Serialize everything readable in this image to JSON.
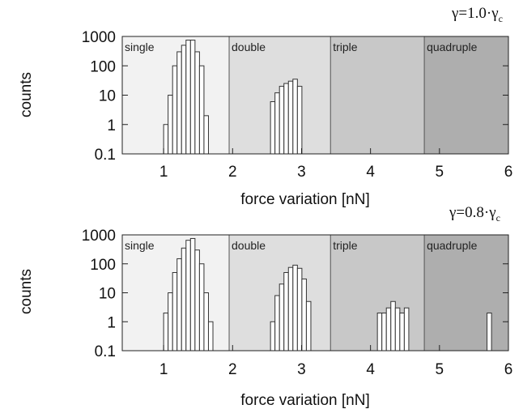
{
  "chart_data": [
    {
      "type": "bar",
      "annotation": "γ=1.0·γ",
      "annotation_sub": "c",
      "xlabel": "force variation [nN]",
      "ylabel": "counts",
      "xlim": [
        0.4,
        6
      ],
      "ylim": [
        0.1,
        1000
      ],
      "yscale": "log",
      "xticks": [
        1,
        2,
        3,
        4,
        5,
        6
      ],
      "yticks": [
        0.1,
        1,
        10,
        100,
        1000
      ],
      "ytick_labels": [
        "0.1",
        "1",
        "10",
        "100",
        "1000"
      ],
      "regions": [
        {
          "label": "single",
          "from": 0.4,
          "to": 1.95,
          "color": "#f2f2f2"
        },
        {
          "label": "double",
          "from": 1.95,
          "to": 3.42,
          "color": "#dedede"
        },
        {
          "label": "triple",
          "from": 3.42,
          "to": 4.78,
          "color": "#c8c8c8"
        },
        {
          "label": "quadruple",
          "from": 4.78,
          "to": 6,
          "color": "#aeaeae"
        }
      ],
      "bar_width": 0.065,
      "bins": [
        {
          "x": 1.0,
          "count": 1
        },
        {
          "x": 1.065,
          "count": 10
        },
        {
          "x": 1.13,
          "count": 100
        },
        {
          "x": 1.195,
          "count": 300
        },
        {
          "x": 1.26,
          "count": 500
        },
        {
          "x": 1.325,
          "count": 750
        },
        {
          "x": 1.39,
          "count": 750
        },
        {
          "x": 1.455,
          "count": 300
        },
        {
          "x": 1.52,
          "count": 100
        },
        {
          "x": 1.585,
          "count": 2
        },
        {
          "x": 2.55,
          "count": 6
        },
        {
          "x": 2.615,
          "count": 12
        },
        {
          "x": 2.68,
          "count": 20
        },
        {
          "x": 2.745,
          "count": 25
        },
        {
          "x": 2.81,
          "count": 30
        },
        {
          "x": 2.875,
          "count": 35
        },
        {
          "x": 2.94,
          "count": 20
        }
      ]
    },
    {
      "type": "bar",
      "annotation": "γ=0.8·γ",
      "annotation_sub": "c",
      "xlabel": "force variation [nN]",
      "ylabel": "counts",
      "xlim": [
        0.4,
        6
      ],
      "ylim": [
        0.1,
        1000
      ],
      "yscale": "log",
      "xticks": [
        1,
        2,
        3,
        4,
        5,
        6
      ],
      "yticks": [
        0.1,
        1,
        10,
        100,
        1000
      ],
      "ytick_labels": [
        "0.1",
        "1",
        "10",
        "100",
        "1000"
      ],
      "regions": [
        {
          "label": "single",
          "from": 0.4,
          "to": 1.95,
          "color": "#f2f2f2"
        },
        {
          "label": "double",
          "from": 1.95,
          "to": 3.42,
          "color": "#dedede"
        },
        {
          "label": "triple",
          "from": 3.42,
          "to": 4.78,
          "color": "#c8c8c8"
        },
        {
          "label": "quadruple",
          "from": 4.78,
          "to": 6,
          "color": "#aeaeae"
        }
      ],
      "bar_width": 0.065,
      "bins": [
        {
          "x": 1.0,
          "count": 2
        },
        {
          "x": 1.065,
          "count": 10
        },
        {
          "x": 1.13,
          "count": 50
        },
        {
          "x": 1.195,
          "count": 150
        },
        {
          "x": 1.26,
          "count": 350
        },
        {
          "x": 1.325,
          "count": 650
        },
        {
          "x": 1.39,
          "count": 750
        },
        {
          "x": 1.455,
          "count": 300
        },
        {
          "x": 1.52,
          "count": 100
        },
        {
          "x": 1.585,
          "count": 10
        },
        {
          "x": 1.65,
          "count": 1
        },
        {
          "x": 2.55,
          "count": 1
        },
        {
          "x": 2.615,
          "count": 8
        },
        {
          "x": 2.68,
          "count": 20
        },
        {
          "x": 2.745,
          "count": 50
        },
        {
          "x": 2.81,
          "count": 75
        },
        {
          "x": 2.875,
          "count": 90
        },
        {
          "x": 2.94,
          "count": 70
        },
        {
          "x": 3.005,
          "count": 30
        },
        {
          "x": 3.07,
          "count": 5
        },
        {
          "x": 4.1,
          "count": 2
        },
        {
          "x": 4.165,
          "count": 2
        },
        {
          "x": 4.23,
          "count": 3
        },
        {
          "x": 4.295,
          "count": 5
        },
        {
          "x": 4.36,
          "count": 3
        },
        {
          "x": 4.425,
          "count": 2
        },
        {
          "x": 4.49,
          "count": 3
        },
        {
          "x": 5.69,
          "count": 2
        }
      ]
    }
  ]
}
